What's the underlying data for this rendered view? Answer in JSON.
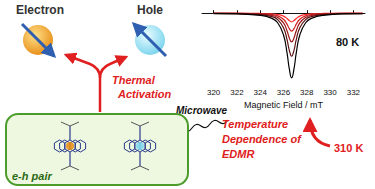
{
  "labels": {
    "electron": "Electron",
    "hole": "Hole",
    "thermal": [
      "Thermal",
      "Activation"
    ],
    "microwave": "Microwave",
    "pair": "e-h pair",
    "temperature": [
      "Temperature",
      "Dependence of",
      "EDMR"
    ]
  },
  "chart_data": {
    "type": "line",
    "xlabel": "Magnetic Field / mT",
    "x": [
      320,
      322,
      324,
      325,
      325.5,
      326,
      326.3,
      326.5,
      326.7,
      326.9,
      327.1,
      327.4,
      327.9,
      328.4,
      329.4,
      331.4,
      332.8
    ],
    "series": [
      {
        "color": "#ff2a2a",
        "values": [
          -0.1,
          -0.1,
          -0.4,
          -1,
          -1.8,
          -4.1,
          -7.3,
          -10.3,
          -12,
          -10.3,
          -7.3,
          -4.1,
          -1.8,
          -1,
          -0.4,
          -0.1,
          -0.1
        ]
      },
      {
        "color": "#cc2020",
        "values": [
          -0.2,
          -0.3,
          -0.8,
          -2,
          -3.7,
          -8.5,
          -15.3,
          -21.6,
          -25,
          -21.6,
          -15.3,
          -8.5,
          -3.7,
          -2,
          -0.8,
          -0.3,
          -0.2
        ]
      },
      {
        "color": "#9a1515",
        "values": [
          -0.2,
          -0.4,
          -1.3,
          -3.2,
          -5.9,
          -13.5,
          -24.4,
          -34.5,
          -40,
          -34.5,
          -24.4,
          -13.5,
          -5.9,
          -3.2,
          -1.3,
          -0.4,
          -0.4
        ]
      },
      {
        "color": "#5a1010",
        "values": [
          -0.4,
          -0.7,
          -2,
          -4.8,
          -8.9,
          -20.3,
          -36.6,
          -51.7,
          -60,
          -51.7,
          -36.6,
          -20.3,
          -8.9,
          -4.8,
          -2,
          -0.7,
          -0.5
        ]
      },
      {
        "color": "#000000",
        "values": [
          -0.5,
          -1,
          -3,
          -7.2,
          -13.3,
          -30.4,
          -54.9,
          -77.6,
          -90,
          -77.6,
          -54.9,
          -30.4,
          -13.3,
          -7.2,
          -3,
          -1,
          -0.8
        ]
      }
    ],
    "xlim": [
      319,
      333
    ],
    "xticks": [
      320,
      322,
      324,
      326,
      328,
      330,
      332
    ],
    "ylim": [
      -100,
      10
    ],
    "tick_labels": "x",
    "grid": false,
    "annotations": [
      "80 K",
      "310 K"
    ]
  }
}
